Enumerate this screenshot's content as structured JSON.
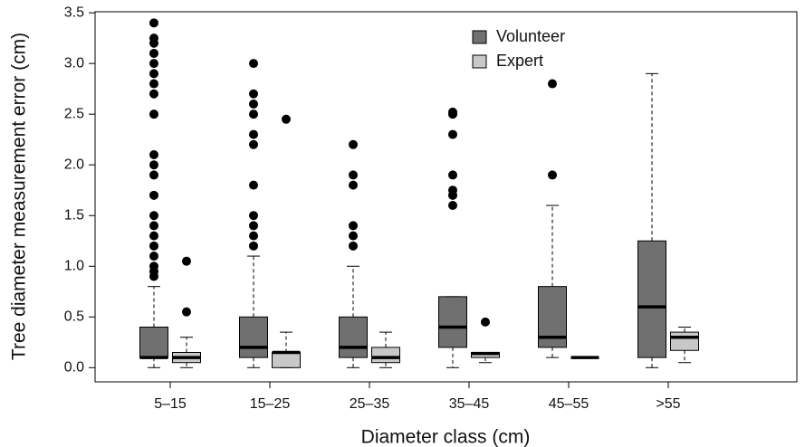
{
  "chart_data": {
    "type": "box",
    "xlabel": "Diameter class (cm)",
    "ylabel": "Tree diameter measurement error (cm)",
    "categories": [
      "5–15",
      "15–25",
      "25–35",
      "35–45",
      "45–55",
      ">55"
    ],
    "ylim": [
      -0.14,
      3.51
    ],
    "yticks": [
      {
        "value": 0,
        "label": "0.0"
      },
      0.5,
      {
        "value": 1,
        "label": "1.0"
      },
      1.5,
      {
        "value": 2,
        "label": "2.0"
      },
      2.5,
      {
        "value": 3,
        "label": "3.0"
      },
      3.5
    ],
    "grid": false,
    "legend_position": "top",
    "series": [
      {
        "name": "Volunteer",
        "color": "#707070",
        "low": [
          0,
          0,
          0,
          0,
          0.1,
          0
        ],
        "q1": [
          0.1,
          0.1,
          0.1,
          0.2,
          0.2,
          0.1
        ],
        "median": [
          0.1,
          0.2,
          0.2,
          0.4,
          0.3,
          0.6
        ],
        "q3": [
          0.4,
          0.5,
          0.5,
          0.7,
          0.8,
          1.25
        ],
        "high": [
          0.8,
          1.1,
          1.0,
          0.7,
          1.6,
          2.9
        ],
        "outliers": [
          [
            0.9,
            0.95,
            1.0,
            1.1,
            1.2,
            1.3,
            1.4,
            1.5,
            1.7,
            1.9,
            2.0,
            2.1,
            2.5,
            2.7,
            2.8,
            2.9,
            3.0,
            3.1,
            3.2,
            3.25,
            3.4
          ],
          [
            1.2,
            1.3,
            1.4,
            1.5,
            1.8,
            2.2,
            2.3,
            2.5,
            2.6,
            2.7,
            3.0
          ],
          [
            1.2,
            1.3,
            1.4,
            1.8,
            1.9,
            2.2
          ],
          [
            1.6,
            1.7,
            1.75,
            1.9,
            2.3,
            2.5,
            2.52
          ],
          [
            1.9,
            2.8
          ],
          []
        ]
      },
      {
        "name": "Expert",
        "color": "#c8c8c8",
        "low": [
          0,
          0,
          0,
          0.05,
          0.1,
          0.05
        ],
        "q1": [
          0.05,
          0,
          0.05,
          0.1,
          0.1,
          0.17
        ],
        "median": [
          0.1,
          0.15,
          0.1,
          0.14,
          0.1,
          0.3
        ],
        "q3": [
          0.15,
          0.15,
          0.2,
          0.15,
          0.1,
          0.35
        ],
        "high": [
          0.3,
          0.35,
          0.35,
          0.15,
          0.1,
          0.4
        ],
        "outliers": [
          [
            0.55,
            1.05
          ],
          [
            2.45
          ],
          [],
          [
            0.45
          ],
          [],
          []
        ]
      }
    ]
  }
}
